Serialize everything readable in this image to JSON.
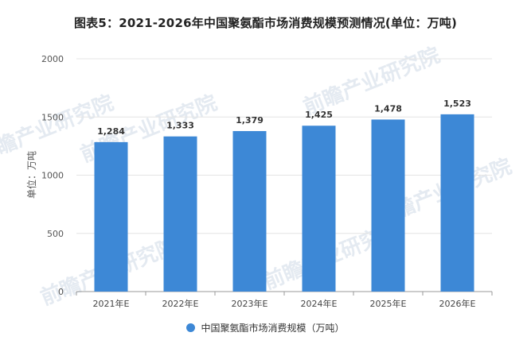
{
  "title": "图表5：2021-2026年中国聚氨酯市场消费规模预测情况(单位：万吨)",
  "watermark": "前瞻产业研究院",
  "colors": {
    "bar": "#3d88d6",
    "grid": "#e4e4e4",
    "axis": "#999999"
  },
  "chart_data": {
    "type": "bar",
    "categories": [
      "2021年E",
      "2022年E",
      "2023年E",
      "2024年E",
      "2025年E",
      "2026年E"
    ],
    "series": [
      {
        "name": "中国聚氨酯市场消费规模（万吨）",
        "values": [
          1284,
          1333,
          1379,
          1425,
          1478,
          1523
        ]
      }
    ],
    "data_labels": [
      "1,284",
      "1,333",
      "1,379",
      "1,425",
      "1,478",
      "1,523"
    ],
    "ylabel": "单位：万吨",
    "ylim": [
      0,
      2000
    ],
    "yticks": [
      "0",
      "500",
      "1000",
      "1500",
      "2000"
    ],
    "grid": true,
    "legend": "bottom"
  }
}
